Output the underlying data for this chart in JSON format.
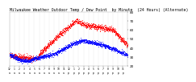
{
  "title": "Milwaukee Weather Outdoor Temp / Dew Point  by Minute  (24 Hours) (Alternate)",
  "title_fontsize": 3.5,
  "bg_color": "#ffffff",
  "plot_bg_color": "#ffffff",
  "text_color": "#000000",
  "grid_color": "#aaaaaa",
  "temp_color": "#ff0000",
  "dew_color": "#0000ff",
  "ylim": [
    20,
    80
  ],
  "yticks": [
    20,
    30,
    40,
    50,
    60,
    70,
    80
  ],
  "num_points": 1440,
  "dot_size": 0.3
}
